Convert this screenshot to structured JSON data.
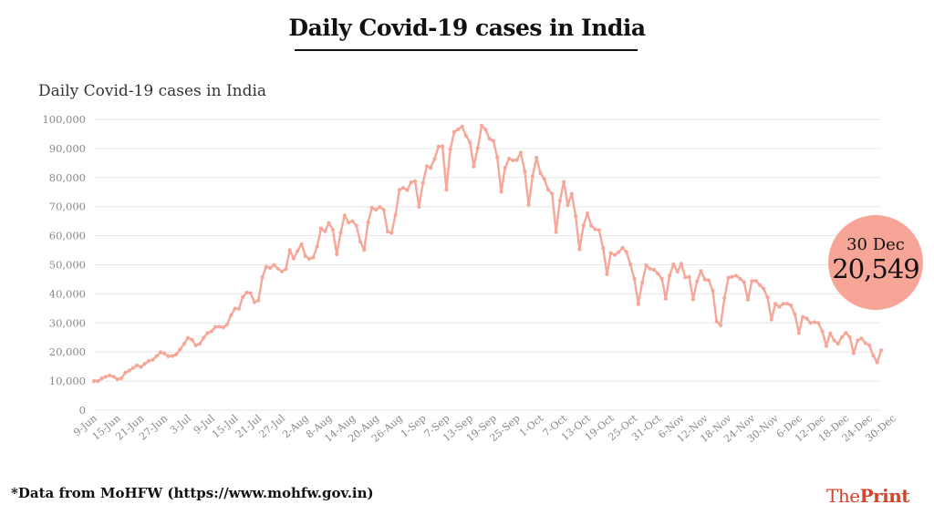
{
  "header": {
    "title": "Daily Covid-19 cases in India"
  },
  "badge": {
    "date": "30 Dec",
    "value": "20,549"
  },
  "footer": {
    "source": "*Data from MoHFW (https://www.mohfw.gov.in)"
  },
  "brand": {
    "part1": "The",
    "part2": "Print"
  },
  "colors": {
    "line": "#f5a89a",
    "badge": "#f7a596",
    "brand": "#d0452b"
  },
  "chart_data": {
    "type": "line",
    "title": "Daily Covid-19 cases in India",
    "xlabel": "",
    "ylabel": "",
    "ylim": [
      0,
      100000
    ],
    "yticks": [
      0,
      10000,
      20000,
      30000,
      40000,
      50000,
      60000,
      70000,
      80000,
      90000,
      100000
    ],
    "ytick_labels": [
      "0",
      "10,000",
      "20,000",
      "30,000",
      "40,000",
      "50,000",
      "60,000",
      "70,000",
      "80,000",
      "90,000",
      "100,000"
    ],
    "xtick_labels": [
      "9-Jun",
      "15-Jun",
      "21-Jun",
      "27-Jun",
      "3-Jul",
      "9-Jul",
      "15-Jul",
      "21-Jul",
      "27-Jul",
      "2-Aug",
      "8-Aug",
      "14-Aug",
      "20-Aug",
      "26-Aug",
      "1-Sep",
      "7-Sep",
      "13-Sep",
      "19-Sep",
      "25-Sep",
      "1-Oct",
      "7-Oct",
      "13-Oct",
      "19-Oct",
      "25-Oct",
      "31-Oct",
      "6-Nov",
      "12-Nov",
      "18-Nov",
      "24-Nov",
      "30-Nov",
      "6-Dec",
      "12-Dec",
      "18-Dec",
      "24-Dec",
      "30-Dec"
    ],
    "grid": true,
    "legend": "none",
    "series": [
      {
        "start_date": "9-Jun",
        "values": [
          9987,
          9985,
          10956,
          11458,
          11929,
          11502,
          10667,
          10974,
          12881,
          13586,
          14516,
          15413,
          14821,
          15968,
          16922,
          17296,
          18552,
          19906,
          19459,
          18522,
          18653,
          19148,
          20903,
          22771,
          24850,
          24248,
          22252,
          22752,
          24879,
          26506,
          27114,
          28637,
          28701,
          28498,
          29429,
          32695,
          34956,
          34884,
          38902,
          40425,
          40243,
          37148,
          37724,
          45720,
          49310,
          48916,
          49931,
          48661,
          47703,
          48513,
          55079,
          52123,
          54736,
          57117,
          52972,
          52050,
          52509,
          56282,
          62538,
          61537,
          64399,
          62064,
          53601,
          60963,
          66999,
          64553,
          65002,
          63490,
          57982,
          55079,
          64531,
          69652,
          68900,
          69878,
          68898,
          61408,
          60975,
          67151,
          75760,
          76472,
          75719,
          78357,
          78761,
          69921,
          78169,
          83883,
          83341,
          86432,
          90632,
          90802,
          75809,
          89706,
          95735,
          96551,
          97570,
          94372,
          92071,
          83809,
          90123,
          97894,
          96424,
          93337,
          92605,
          86961,
          75083,
          83347,
          86508,
          85919,
          86052,
          88600,
          82170,
          70589,
          80472,
          86821,
          81484,
          79476,
          75829,
          74442,
          61267,
          72049,
          78524,
          70496,
          74383,
          66732,
          55342,
          63509,
          67708,
          63371,
          62212,
          61871,
          55722,
          46790,
          54044,
          53370,
          54366,
          55838,
          54350,
          50129,
          45148,
          36470,
          43893,
          49881,
          48648,
          48268,
          46963,
          45230,
          38310,
          46254,
          50210,
          47638,
          50356,
          45674,
          45903,
          38074,
          44281,
          47905,
          44879,
          44684,
          41100,
          30548,
          29164,
          38617,
          45576,
          45882,
          46232,
          45209,
          44059,
          37975,
          44376,
          44489,
          43082,
          41810,
          38772,
          31118,
          36604,
          35551,
          36595,
          36652,
          36011,
          32981,
          26567,
          32080,
          31521,
          30006,
          30254,
          30005,
          27071,
          22065,
          26382,
          24010,
          22890,
          25152,
          26624,
          25072,
          19556,
          23950,
          24712,
          23067,
          22273,
          18732,
          16432,
          20549
        ]
      }
    ]
  }
}
